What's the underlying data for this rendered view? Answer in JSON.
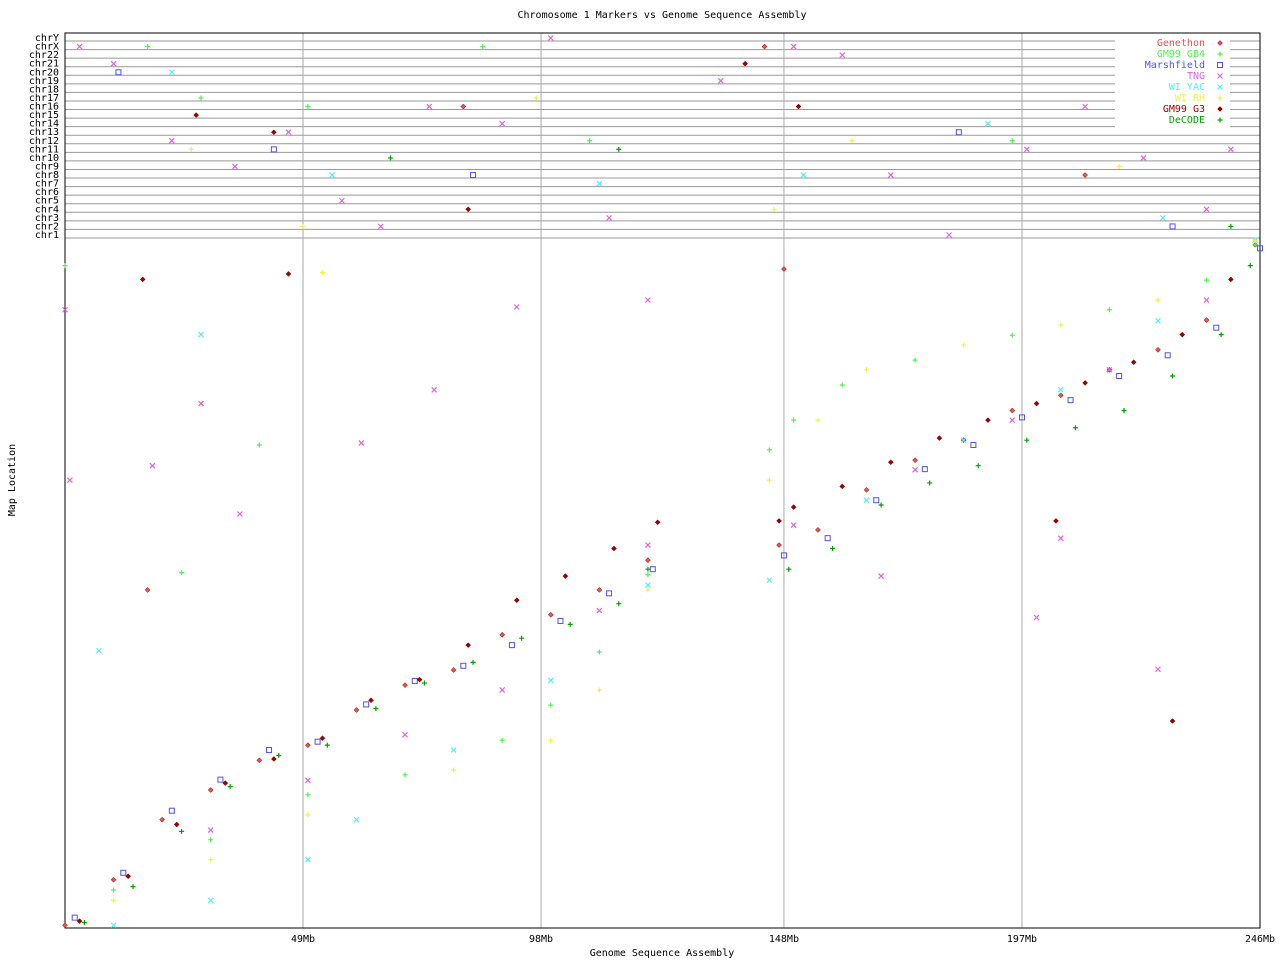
{
  "chart_data": {
    "type": "scatter",
    "title": "Chromosome 1 Markers vs Genome Sequence Assembly",
    "x_label": "Genome Sequence Assembly",
    "y_label": "Map Location",
    "xlim": [
      0,
      246
    ],
    "xticks": [
      {
        "value": 49,
        "label": "49Mb"
      },
      {
        "value": 98,
        "label": "98Mb"
      },
      {
        "value": 148,
        "label": "148Mb"
      },
      {
        "value": 197,
        "label": "197Mb"
      },
      {
        "value": 246,
        "label": "246Mb"
      }
    ],
    "ylim": [
      0,
      100
    ],
    "chromosomes": [
      "chr1",
      "chr2",
      "chr3",
      "chr4",
      "chr5",
      "chr6",
      "chr7",
      "chr8",
      "chr9",
      "chr10",
      "chr11",
      "chr12",
      "chr13",
      "chr14",
      "chr15",
      "chr16",
      "chr17",
      "chr18",
      "chr19",
      "chr20",
      "chr21",
      "chr22",
      "chrX",
      "chrY"
    ],
    "grid": true,
    "legend": "top-right",
    "series": [
      {
        "name": "Genethon",
        "color": "#f05050",
        "marker": "diamond",
        "x": [
          0,
          10,
          20,
          30,
          40,
          50,
          60,
          70,
          80,
          90,
          100,
          110,
          120,
          147,
          155,
          165,
          175,
          185,
          195,
          205,
          215,
          225,
          235,
          245,
          17,
          148
        ],
        "values": [
          0.4,
          7,
          15.7,
          20,
          24.3,
          26.5,
          31.6,
          35.2,
          37.4,
          42.5,
          45.4,
          49,
          53.3,
          55.5,
          57.7,
          63.5,
          67.8,
          70.7,
          75,
          77.2,
          80.9,
          83.8,
          88.1,
          99,
          49,
          95.5
        ],
        "offchrom_x": [
          82,
          144,
          210
        ],
        "offchrom_chr": [
          "chr16",
          "chrX",
          "chr8"
        ]
      },
      {
        "name": "GM99 GB4",
        "color": "#50f050",
        "marker": "plus",
        "x": [
          0,
          10,
          30,
          50,
          70,
          90,
          100,
          110,
          120,
          145,
          150,
          160,
          175,
          195,
          215,
          235,
          245,
          24,
          40
        ],
        "values": [
          96,
          5.5,
          12.8,
          19.3,
          22.2,
          27.2,
          32.3,
          40,
          51.2,
          69.3,
          73.6,
          78.7,
          82.3,
          85.9,
          89.6,
          93.9,
          99,
          51.5,
          70
        ],
        "offchrom_x": [
          17,
          28,
          50,
          86,
          108,
          195
        ],
        "offchrom_chr": [
          "chrX",
          "chr17",
          "chr16",
          "chrX",
          "chr12",
          "chr12"
        ]
      },
      {
        "name": "Marshfield",
        "color": "#5050f0",
        "marker": "square",
        "x": [
          2,
          12,
          22,
          32,
          42,
          52,
          62,
          72,
          82,
          92,
          102,
          112,
          121,
          148,
          157,
          167,
          177,
          187,
          197,
          207,
          217,
          227,
          237,
          246
        ],
        "values": [
          1.5,
          8,
          17,
          21.5,
          25.8,
          27,
          32.4,
          35.8,
          38,
          41,
          44.5,
          48.5,
          52,
          54,
          56.5,
          62,
          66.5,
          70,
          74,
          76.5,
          80,
          83,
          87,
          98.5
        ],
        "offchrom_x": [
          11,
          43,
          84,
          184,
          228
        ],
        "offchrom_chr": [
          "chr20",
          "chr11",
          "chr8",
          "chr13",
          "chr2"
        ]
      },
      {
        "name": "TNG",
        "color": "#e060e0",
        "marker": "x",
        "x": [
          0,
          30,
          50,
          70,
          90,
          110,
          120,
          150,
          175,
          195,
          215,
          235,
          1,
          18,
          36,
          28,
          61,
          76,
          93,
          120,
          168,
          205,
          200,
          225
        ],
        "values": [
          89.6,
          14.2,
          21.4,
          28,
          34.5,
          46,
          55.5,
          58.4,
          66.4,
          73.6,
          80.9,
          91,
          64.9,
          67,
          60,
          76,
          70.3,
          78,
          90,
          91,
          51,
          56.5,
          45,
          37.5
        ],
        "offchrom_x": [
          3,
          10,
          22,
          35,
          46,
          57,
          65,
          75,
          90,
          100,
          112,
          135,
          150,
          160,
          170,
          182,
          198,
          210,
          222,
          235,
          240
        ],
        "offchrom_chr": [
          "chrX",
          "chr21",
          "chr12",
          "chr9",
          "chr13",
          "chr5",
          "chr2",
          "chr16",
          "chr14",
          "chrY",
          "chr3",
          "chr19",
          "chrX",
          "chr22",
          "chr8",
          "chr1",
          "chr11",
          "chr16",
          "chr10",
          "chr4",
          "chr11"
        ]
      },
      {
        "name": "WI YAC",
        "color": "#50f0f0",
        "marker": "x",
        "x": [
          10,
          30,
          50,
          60,
          80,
          100,
          120,
          145,
          165,
          185,
          205,
          225,
          245,
          7,
          28
        ],
        "values": [
          0.4,
          4,
          9.9,
          15.7,
          25.8,
          35.9,
          49.7,
          50.4,
          62,
          70.7,
          78,
          88,
          99.7,
          40.2,
          86
        ],
        "offchrom_x": [
          22,
          55,
          110,
          152,
          190,
          226
        ],
        "offchrom_chr": [
          "chr20",
          "chr8",
          "chr7",
          "chr8",
          "chr14",
          "chr3"
        ]
      },
      {
        "name": "WI RH",
        "color": "#f0f050",
        "marker": "plus",
        "x": [
          10,
          30,
          50,
          80,
          100,
          110,
          120,
          145,
          155,
          165,
          185,
          205,
          225,
          245,
          53
        ],
        "values": [
          4,
          9.9,
          16.4,
          22.9,
          27.2,
          34.5,
          49,
          64.9,
          73.6,
          80.9,
          84.5,
          87.4,
          91,
          99.7,
          95
        ],
        "offchrom_x": [
          26,
          49,
          97,
          146,
          162,
          217
        ],
        "offchrom_chr": [
          "chr11",
          "chr2",
          "chr17",
          "chr4",
          "chr12",
          "chr9"
        ]
      },
      {
        "name": "GM99 G3",
        "color": "#a00000",
        "marker": "diamond",
        "x": [
          3,
          13,
          23,
          33,
          43,
          53,
          63,
          73,
          83,
          93,
          103,
          113,
          122,
          147,
          150,
          160,
          170,
          180,
          190,
          200,
          210,
          220,
          230,
          240,
          16,
          46,
          204,
          228
        ],
        "values": [
          1,
          7.5,
          15,
          21,
          24.5,
          27.5,
          33,
          36,
          41,
          47.5,
          51,
          55,
          58.8,
          59,
          61,
          64,
          67.5,
          71,
          73.6,
          76,
          79,
          82,
          86,
          94,
          94,
          94.8,
          59,
          30
        ],
        "offchrom_x": [
          27,
          43,
          83,
          140,
          151
        ],
        "offchrom_chr": [
          "chr15",
          "chr13",
          "chr4",
          "chr21",
          "chr16"
        ]
      },
      {
        "name": "DeCODE",
        "color": "#00a000",
        "marker": "plus",
        "x": [
          4,
          14,
          24,
          34,
          44,
          54,
          64,
          74,
          84,
          94,
          104,
          114,
          120,
          149,
          158,
          168,
          178,
          188,
          198,
          208,
          218,
          228,
          238,
          244
        ],
        "values": [
          0.8,
          6,
          14,
          20.5,
          25,
          26.5,
          31.8,
          35.5,
          38.5,
          42,
          44,
          47,
          52,
          52,
          55,
          61.3,
          64.5,
          67,
          70.7,
          72.5,
          75,
          80,
          86,
          96
        ],
        "offchrom_x": [
          67,
          114,
          240
        ],
        "offchrom_chr": [
          "chr10",
          "chr11",
          "chr2"
        ]
      }
    ]
  }
}
